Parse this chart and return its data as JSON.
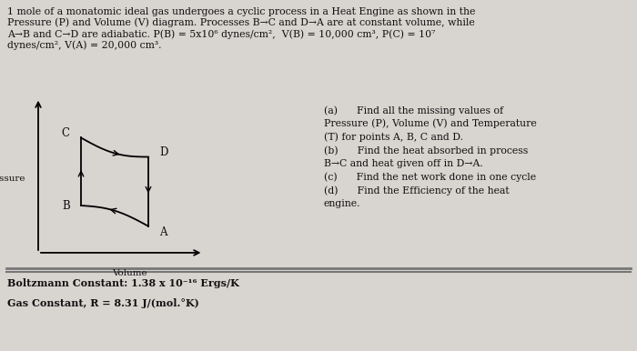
{
  "bg_color": "#d8d4d0",
  "title_text": "1 mole of a monatomic ideal gas undergoes a cyclic process in a Heat Engine as shown in the\nPressure (P) and Volume (V) diagram. Processes B→C and D→A are at constant volume, while\nA→B and C→D are adiabatic. P(B) = 5x10⁶ dynes/cm²,  V(B) = 10,000 cm³, P(C) = 10⁷\ndynes/cm², V(A) = 20,000 cm³.",
  "right_text": "(a)      Find all the missing values of\nPressure (P), Volume (V) and Temperature\n(T) for points A, B, C and D.\n(b)      Find the heat absorbed in process\nB→C and heat given off in D→A.\n(c)      Find the net work done in one cycle\n(d)      Find the Efficiency of the heat\nengine.",
  "bottom_text1": "Boltzmann Constant: 1.38 x 10⁻¹⁶ Ergs/K",
  "bottom_text2": "Gas Constant, R = 8.31 J/(mol.°K)",
  "ylabel": "Pressure",
  "xlabel": "Volume",
  "font_color": "#111111"
}
